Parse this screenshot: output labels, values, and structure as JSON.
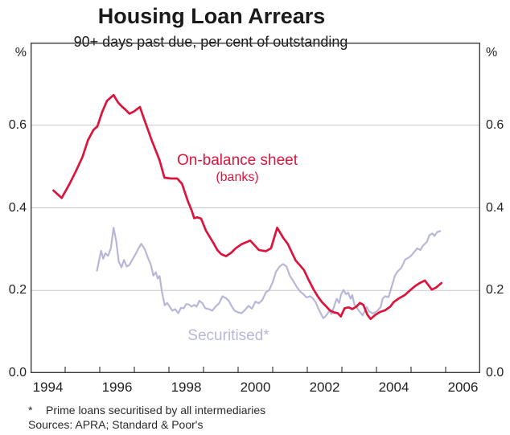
{
  "chart_data": {
    "type": "line",
    "title": "Housing Loan Arrears",
    "subtitle": "90+ days past due, per cent of outstanding",
    "y_unit": "%",
    "xlim": [
      1994,
      2007
    ],
    "ylim": [
      0,
      0.8
    ],
    "grid": "horizontal",
    "legend_position": "inline-labels",
    "y_ticks": [
      {
        "label": "0.0",
        "value": 0.0
      },
      {
        "label": "0.2",
        "value": 0.2
      },
      {
        "label": "0.4",
        "value": 0.4
      },
      {
        "label": "0.6",
        "value": 0.6
      }
    ],
    "x_ticks": [
      {
        "label": "1994",
        "value": 1994.5
      },
      {
        "label": "1996",
        "value": 1996.5
      },
      {
        "label": "1998",
        "value": 1998.5
      },
      {
        "label": "2000",
        "value": 2000.5
      },
      {
        "label": "2002",
        "value": 2002.5
      },
      {
        "label": "2004",
        "value": 2004.5
      },
      {
        "label": "2006",
        "value": 2006.5
      }
    ],
    "series": [
      {
        "name": "On-balance sheet (banks)",
        "label": "On-balance sheet",
        "sublabel": "(banks)",
        "color": "#dc143c",
        "points": [
          [
            1994.66,
            0.442
          ],
          [
            1994.9,
            0.424
          ],
          [
            1995.12,
            0.457
          ],
          [
            1995.3,
            0.487
          ],
          [
            1995.5,
            0.523
          ],
          [
            1995.66,
            0.564
          ],
          [
            1995.82,
            0.589
          ],
          [
            1995.93,
            0.597
          ],
          [
            1996.07,
            0.632
          ],
          [
            1996.21,
            0.659
          ],
          [
            1996.4,
            0.673
          ],
          [
            1996.53,
            0.655
          ],
          [
            1996.63,
            0.646
          ],
          [
            1996.74,
            0.638
          ],
          [
            1996.86,
            0.628
          ],
          [
            1997.0,
            0.634
          ],
          [
            1997.16,
            0.644
          ],
          [
            1997.27,
            0.618
          ],
          [
            1997.5,
            0.564
          ],
          [
            1997.73,
            0.515
          ],
          [
            1997.87,
            0.473
          ],
          [
            1998.06,
            0.471
          ],
          [
            1998.24,
            0.471
          ],
          [
            1998.38,
            0.458
          ],
          [
            1998.54,
            0.418
          ],
          [
            1998.66,
            0.393
          ],
          [
            1998.73,
            0.375
          ],
          [
            1998.82,
            0.377
          ],
          [
            1998.93,
            0.374
          ],
          [
            1999.07,
            0.345
          ],
          [
            1999.28,
            0.316
          ],
          [
            1999.4,
            0.298
          ],
          [
            1999.51,
            0.288
          ],
          [
            1999.65,
            0.283
          ],
          [
            1999.81,
            0.292
          ],
          [
            1999.93,
            0.302
          ],
          [
            2000.1,
            0.312
          ],
          [
            2000.35,
            0.321
          ],
          [
            2000.6,
            0.298
          ],
          [
            2000.8,
            0.295
          ],
          [
            2000.95,
            0.302
          ],
          [
            2001.13,
            0.352
          ],
          [
            2001.3,
            0.328
          ],
          [
            2001.44,
            0.312
          ],
          [
            2001.66,
            0.273
          ],
          [
            2001.9,
            0.25
          ],
          [
            2002.05,
            0.224
          ],
          [
            2002.19,
            0.201
          ],
          [
            2002.31,
            0.185
          ],
          [
            2002.42,
            0.172
          ],
          [
            2002.54,
            0.162
          ],
          [
            2002.65,
            0.152
          ],
          [
            2002.77,
            0.147
          ],
          [
            2002.88,
            0.145
          ],
          [
            2002.97,
            0.137
          ],
          [
            2003.08,
            0.157
          ],
          [
            2003.2,
            0.159
          ],
          [
            2003.3,
            0.155
          ],
          [
            2003.42,
            0.161
          ],
          [
            2003.52,
            0.17
          ],
          [
            2003.62,
            0.165
          ],
          [
            2003.74,
            0.141
          ],
          [
            2003.83,
            0.131
          ],
          [
            2003.95,
            0.14
          ],
          [
            2004.1,
            0.148
          ],
          [
            2004.25,
            0.152
          ],
          [
            2004.4,
            0.161
          ],
          [
            2004.5,
            0.172
          ],
          [
            2004.65,
            0.181
          ],
          [
            2004.82,
            0.189
          ],
          [
            2004.95,
            0.199
          ],
          [
            2005.12,
            0.211
          ],
          [
            2005.25,
            0.218
          ],
          [
            2005.4,
            0.224
          ],
          [
            2005.6,
            0.202
          ],
          [
            2005.72,
            0.207
          ],
          [
            2005.88,
            0.218
          ]
        ]
      },
      {
        "name": "Securitised",
        "label": "Securitised*",
        "sublabel": "",
        "color": "#b8b7d8",
        "points": [
          [
            1995.92,
            0.248
          ],
          [
            1995.98,
            0.272
          ],
          [
            1996.04,
            0.296
          ],
          [
            1996.1,
            0.277
          ],
          [
            1996.16,
            0.29
          ],
          [
            1996.24,
            0.284
          ],
          [
            1996.32,
            0.302
          ],
          [
            1996.4,
            0.352
          ],
          [
            1996.48,
            0.318
          ],
          [
            1996.55,
            0.27
          ],
          [
            1996.63,
            0.256
          ],
          [
            1996.7,
            0.274
          ],
          [
            1996.78,
            0.258
          ],
          [
            1996.86,
            0.262
          ],
          [
            1996.95,
            0.276
          ],
          [
            1997.05,
            0.29
          ],
          [
            1997.12,
            0.302
          ],
          [
            1997.2,
            0.313
          ],
          [
            1997.3,
            0.3
          ],
          [
            1997.4,
            0.278
          ],
          [
            1997.48,
            0.262
          ],
          [
            1997.55,
            0.236
          ],
          [
            1997.62,
            0.244
          ],
          [
            1997.68,
            0.229
          ],
          [
            1997.73,
            0.235
          ],
          [
            1997.8,
            0.196
          ],
          [
            1997.88,
            0.164
          ],
          [
            1997.95,
            0.17
          ],
          [
            1998.02,
            0.161
          ],
          [
            1998.1,
            0.151
          ],
          [
            1998.18,
            0.155
          ],
          [
            1998.27,
            0.145
          ],
          [
            1998.35,
            0.158
          ],
          [
            1998.43,
            0.157
          ],
          [
            1998.5,
            0.167
          ],
          [
            1998.58,
            0.166
          ],
          [
            1998.65,
            0.161
          ],
          [
            1998.73,
            0.165
          ],
          [
            1998.8,
            0.161
          ],
          [
            1998.88,
            0.175
          ],
          [
            1998.97,
            0.169
          ],
          [
            1999.05,
            0.157
          ],
          [
            1999.15,
            0.155
          ],
          [
            1999.25,
            0.151
          ],
          [
            1999.35,
            0.161
          ],
          [
            1999.45,
            0.169
          ],
          [
            1999.55,
            0.186
          ],
          [
            1999.65,
            0.181
          ],
          [
            1999.73,
            0.175
          ],
          [
            1999.82,
            0.161
          ],
          [
            1999.9,
            0.151
          ],
          [
            2000.0,
            0.147
          ],
          [
            2000.1,
            0.145
          ],
          [
            2000.2,
            0.153
          ],
          [
            2000.3,
            0.163
          ],
          [
            2000.4,
            0.156
          ],
          [
            2000.5,
            0.173
          ],
          [
            2000.6,
            0.169
          ],
          [
            2000.7,
            0.177
          ],
          [
            2000.8,
            0.195
          ],
          [
            2000.9,
            0.201
          ],
          [
            2001.0,
            0.22
          ],
          [
            2001.1,
            0.246
          ],
          [
            2001.2,
            0.258
          ],
          [
            2001.3,
            0.264
          ],
          [
            2001.4,
            0.258
          ],
          [
            2001.5,
            0.235
          ],
          [
            2001.6,
            0.222
          ],
          [
            2001.7,
            0.208
          ],
          [
            2001.8,
            0.197
          ],
          [
            2001.9,
            0.19
          ],
          [
            2001.98,
            0.183
          ],
          [
            2002.08,
            0.186
          ],
          [
            2002.16,
            0.181
          ],
          [
            2002.24,
            0.172
          ],
          [
            2002.32,
            0.156
          ],
          [
            2002.4,
            0.143
          ],
          [
            2002.46,
            0.133
          ],
          [
            2002.52,
            0.137
          ],
          [
            2002.58,
            0.143
          ],
          [
            2002.64,
            0.151
          ],
          [
            2002.7,
            0.143
          ],
          [
            2002.77,
            0.16
          ],
          [
            2002.85,
            0.18
          ],
          [
            2002.92,
            0.17
          ],
          [
            2002.98,
            0.191
          ],
          [
            2003.05,
            0.201
          ],
          [
            2003.12,
            0.191
          ],
          [
            2003.18,
            0.195
          ],
          [
            2003.25,
            0.18
          ],
          [
            2003.3,
            0.189
          ],
          [
            2003.36,
            0.166
          ],
          [
            2003.42,
            0.16
          ],
          [
            2003.5,
            0.15
          ],
          [
            2003.6,
            0.14
          ],
          [
            2003.72,
            0.16
          ],
          [
            2003.78,
            0.15
          ],
          [
            2003.9,
            0.144
          ],
          [
            2004.02,
            0.15
          ],
          [
            2004.12,
            0.16
          ],
          [
            2004.18,
            0.18
          ],
          [
            2004.25,
            0.186
          ],
          [
            2004.35,
            0.184
          ],
          [
            2004.46,
            0.215
          ],
          [
            2004.53,
            0.235
          ],
          [
            2004.6,
            0.245
          ],
          [
            2004.72,
            0.255
          ],
          [
            2004.83,
            0.275
          ],
          [
            2004.92,
            0.279
          ],
          [
            2005.0,
            0.284
          ],
          [
            2005.11,
            0.295
          ],
          [
            2005.18,
            0.302
          ],
          [
            2005.27,
            0.298
          ],
          [
            2005.34,
            0.308
          ],
          [
            2005.46,
            0.318
          ],
          [
            2005.53,
            0.334
          ],
          [
            2005.62,
            0.338
          ],
          [
            2005.68,
            0.332
          ],
          [
            2005.75,
            0.341
          ],
          [
            2005.84,
            0.344
          ]
        ]
      }
    ]
  },
  "footnotes": {
    "marker": "*",
    "note": "Prime loans securitised by all intermediaries",
    "sources": "Sources: APRA; Standard & Poor's"
  }
}
